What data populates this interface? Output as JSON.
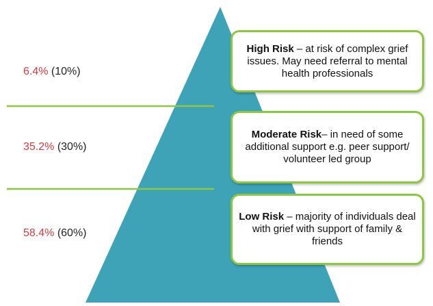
{
  "colors": {
    "pyramid": "#3fa3b8",
    "divider": "#8dc63f",
    "box_border": "#8dc63f",
    "percent": "#d9393e",
    "text": "#222222"
  },
  "tiers": [
    {
      "percent": "6.4%",
      "expected": " (10%)",
      "title": "High Risk",
      "description": " – at risk of complex grief issues. May need referral to mental health professionals"
    },
    {
      "percent": "35.2%",
      "expected": " (30%)",
      "title": "Moderate Risk",
      "description": "– in need of some additional support e.g. peer support/ volunteer led group"
    },
    {
      "percent": "58.4%",
      "expected": " (60%)",
      "title": "Low Risk",
      "description": " – majority of individuals deal with grief with support of family & friends"
    }
  ]
}
